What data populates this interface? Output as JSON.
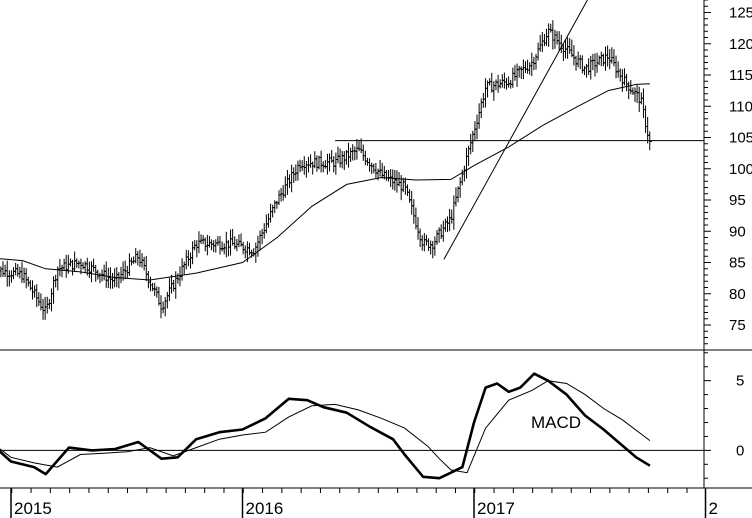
{
  "chart_data": [
    {
      "type": "ohlc",
      "panel": "price",
      "title": "",
      "xlabel": "",
      "ylabel": "",
      "ylim": [
        71,
        127
      ],
      "y_ticks": [
        75,
        80,
        85,
        90,
        95,
        100,
        105,
        110,
        115,
        120,
        125
      ],
      "x_ticks": [
        "2015",
        "2016",
        "2017",
        "2"
      ],
      "grid": false,
      "price_anchors": {
        "t": [
          2014.92,
          2015.05,
          2015.15,
          2015.2,
          2015.3,
          2015.45,
          2015.55,
          2015.65,
          2015.8,
          2015.95,
          2016.05,
          2016.15,
          2016.25,
          2016.4,
          2016.5,
          2016.6,
          2016.7,
          2016.78,
          2016.82,
          2016.9,
          2016.97,
          2017.05,
          2017.15,
          2017.25,
          2017.32,
          2017.4,
          2017.48,
          2017.58,
          2017.65,
          2017.72,
          2017.76
        ],
        "v": [
          84,
          83,
          77,
          84,
          85,
          82,
          86,
          78,
          88,
          88,
          87,
          95,
          101,
          101,
          103,
          99,
          97,
          88,
          88,
          92,
          102,
          113,
          114,
          117,
          122,
          119,
          116,
          118,
          114,
          111,
          104
        ]
      },
      "series": [
        {
          "name": "",
          "style": "ohlc-bars"
        },
        {
          "name": "",
          "style": "moving-average",
          "t": [
            2014.92,
            2015.05,
            2015.15,
            2015.3,
            2015.45,
            2015.6,
            2015.8,
            2016.0,
            2016.15,
            2016.3,
            2016.45,
            2016.6,
            2016.75,
            2016.9,
            2017.0,
            2017.15,
            2017.3,
            2017.45,
            2017.58,
            2017.7,
            2017.76
          ],
          "v": [
            85.7,
            85.3,
            84,
            83.5,
            82.6,
            82.2,
            83.3,
            85,
            89,
            94,
            97.5,
            98.6,
            98.2,
            98.3,
            100.5,
            103.5,
            107,
            110,
            112.5,
            113.5,
            113.6
          ]
        }
      ],
      "lines": [
        {
          "kind": "horizontal",
          "y": 104.5,
          "t_from": 2016.4,
          "t_to": 2017.9
        },
        {
          "kind": "trend",
          "t": [
            2016.87,
            2017.49
          ],
          "v": [
            85.5,
            127
          ]
        }
      ]
    },
    {
      "type": "line",
      "panel": "indicator",
      "title": "",
      "ylim": [
        -2.7,
        7.2
      ],
      "y_ticks": [
        5,
        0
      ],
      "annotations": [
        {
          "text": "MACD"
        }
      ],
      "zero_line": true,
      "series": [
        {
          "name": "",
          "style": "thick",
          "t": [
            2014.92,
            2015.0,
            2015.1,
            2015.15,
            2015.25,
            2015.35,
            2015.45,
            2015.55,
            2015.65,
            2015.72,
            2015.8,
            2015.9,
            2016.0,
            2016.1,
            2016.2,
            2016.28,
            2016.35,
            2016.45,
            2016.55,
            2016.65,
            2016.7,
            2016.78,
            2016.85,
            2016.9,
            2016.95,
            2017.0,
            2017.05,
            2017.1,
            2017.15,
            2017.2,
            2017.26,
            2017.32,
            2017.4,
            2017.48,
            2017.56,
            2017.63,
            2017.7,
            2017.76
          ],
          "v": [
            0.4,
            -0.8,
            -1.2,
            -1.7,
            0.2,
            0.0,
            0.1,
            0.6,
            -0.6,
            -0.5,
            0.8,
            1.3,
            1.5,
            2.3,
            3.7,
            3.6,
            3.1,
            2.7,
            1.7,
            0.8,
            -0.3,
            -1.9,
            -2.0,
            -1.6,
            -1.2,
            2.0,
            4.5,
            4.8,
            4.2,
            4.5,
            5.5,
            5.0,
            4.0,
            2.5,
            1.5,
            0.5,
            -0.5,
            -1.1
          ]
        },
        {
          "name": "",
          "style": "thin",
          "t": [
            2014.92,
            2015.0,
            2015.1,
            2015.2,
            2015.3,
            2015.4,
            2015.5,
            2015.6,
            2015.7,
            2015.8,
            2015.9,
            2016.0,
            2016.1,
            2016.2,
            2016.3,
            2016.4,
            2016.5,
            2016.6,
            2016.7,
            2016.8,
            2016.85,
            2016.9,
            2016.97,
            2017.05,
            2017.15,
            2017.25,
            2017.32,
            2017.4,
            2017.48,
            2017.56,
            2017.64,
            2017.72,
            2017.76
          ],
          "v": [
            0.5,
            -0.5,
            -0.9,
            -1.2,
            -0.3,
            -0.2,
            -0.1,
            0.2,
            -0.4,
            0.2,
            0.8,
            1.1,
            1.3,
            2.4,
            3.2,
            3.3,
            2.9,
            2.3,
            1.6,
            0.3,
            -0.6,
            -1.4,
            -1.6,
            1.6,
            3.6,
            4.3,
            5.0,
            4.8,
            4.0,
            3.0,
            2.2,
            1.2,
            0.7
          ]
        }
      ]
    }
  ]
}
